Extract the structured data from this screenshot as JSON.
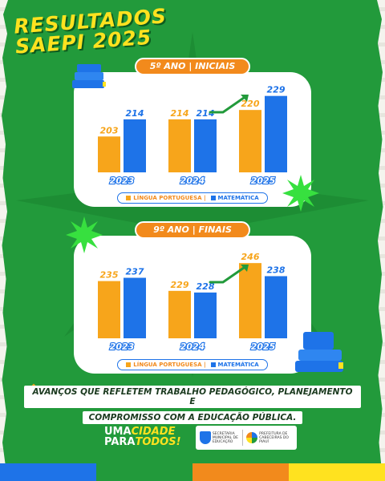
{
  "title": {
    "line1": "RESULTADOS",
    "line2": "SAEPI 2025"
  },
  "colors": {
    "background": "#229a3b",
    "portugues": "#f7a51b",
    "matematica": "#1e73e8",
    "accent_yellow": "#ffe21f",
    "pill_orange": "#f28a1c"
  },
  "chart_data": [
    {
      "type": "bar",
      "title": "5º ANO | INICIAIS",
      "categories": [
        "2023",
        "2024",
        "2025"
      ],
      "series": [
        {
          "name": "LÍNGUA PORTUGUESA",
          "values": [
            203,
            214,
            220
          ]
        },
        {
          "name": "MATEMÁTICA",
          "values": [
            214,
            214,
            229
          ]
        }
      ],
      "ylim": [
        180,
        235
      ],
      "legend_position": "bottom",
      "grid": false
    },
    {
      "type": "bar",
      "title": "9º ANO | FINAIS",
      "categories": [
        "2023",
        "2024",
        "2025"
      ],
      "series": [
        {
          "name": "LÍNGUA PORTUGUESA",
          "values": [
            235,
            229,
            246
          ]
        },
        {
          "name": "MATEMÁTICA",
          "values": [
            237,
            228,
            238
          ]
        }
      ],
      "ylim": [
        200,
        250
      ],
      "legend_position": "bottom",
      "grid": false
    }
  ],
  "legend": {
    "portugues_label": "LÍNGUA PORTUGUESA |",
    "matematica_label": "MATEMÁTICA"
  },
  "footnote": {
    "line1": "AVANÇOS QUE REFLETEM TRABALHO PEDAGÓGICO, PLANEJAMENTO E",
    "line2": "COMPROMISSO COM A EDUCAÇÃO PÚBLICA."
  },
  "slogan": {
    "a": "UMA",
    "b": "CIDADE",
    "c": "PARA",
    "d": "TODOS!"
  },
  "logos": {
    "secretaria": "SECRETARIA MUNICIPAL DE EDUCAÇÃO",
    "prefeitura": "PREFEITURA DE CABECEIRAS DO PIAUÍ"
  },
  "bottom_bar_colors": [
    "#1e73e8",
    "#229a3b",
    "#f28a1c",
    "#ffe21f"
  ]
}
